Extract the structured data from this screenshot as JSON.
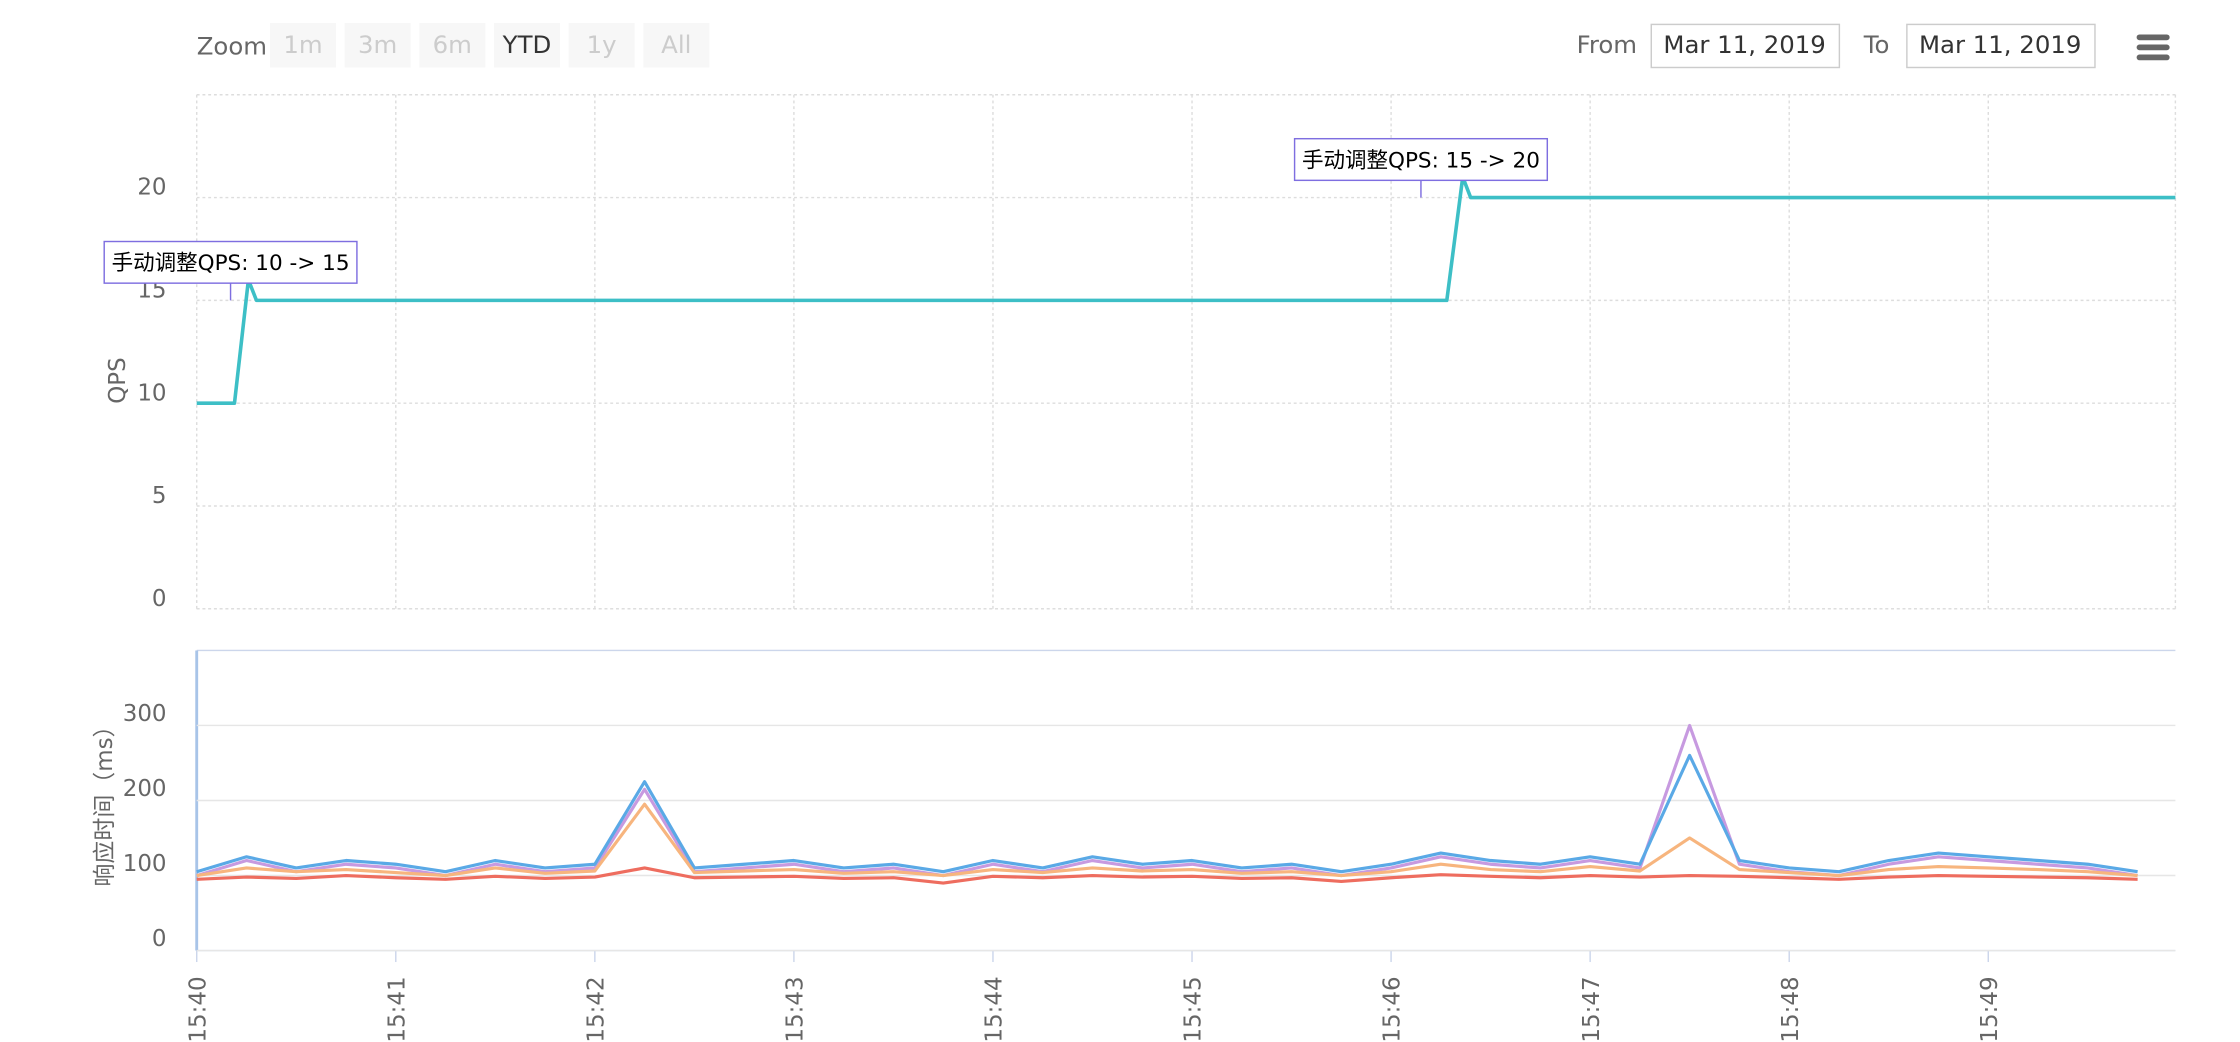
{
  "toolbar": {
    "zoom_label": "Zoom",
    "buttons": [
      "1m",
      "3m",
      "6m",
      "YTD",
      "1y",
      "All"
    ],
    "enabled": [
      false,
      false,
      false,
      true,
      false,
      false
    ],
    "from_label": "From",
    "from_value": "Mar 11, 2019",
    "to_label": "To",
    "to_value": "Mar 11, 2019"
  },
  "chart_data": [
    {
      "type": "line",
      "y_label": "QPS",
      "x": [
        940,
        940.19,
        940.26,
        940.3,
        946.28,
        946.36,
        946.4,
        949.94
      ],
      "series": [
        {
          "color": "#3dbfc6",
          "values": [
            10,
            10,
            16,
            15,
            15,
            21,
            20,
            20
          ]
        }
      ],
      "xlim": [
        940,
        949.94
      ],
      "xticks": [
        940,
        941,
        942,
        943,
        944,
        945,
        946,
        947,
        948,
        949
      ],
      "ylim": [
        0,
        25
      ],
      "yticks": [
        0,
        5,
        10,
        15,
        20
      ],
      "grid": true,
      "annotations": [
        {
          "text": "手动调整QPS: 10 -> 15",
          "x": 940.17,
          "y": 15
        },
        {
          "text": "手动调整QPS: 15 -> 20",
          "x": 946.15,
          "y": 20
        }
      ]
    },
    {
      "type": "line",
      "y_label": "响应时间（ms）",
      "x": [
        940,
        940.25,
        940.5,
        940.75,
        941,
        941.25,
        941.5,
        941.75,
        942,
        942.25,
        942.5,
        942.75,
        943,
        943.25,
        943.5,
        943.75,
        944,
        944.25,
        944.5,
        944.75,
        945,
        945.25,
        945.5,
        945.75,
        946,
        946.25,
        946.5,
        946.75,
        947,
        947.25,
        947.5,
        947.75,
        948,
        948.25,
        948.5,
        948.75,
        949,
        949.25,
        949.5,
        949.75
      ],
      "series": [
        {
          "color": "#c79ae0",
          "values": [
            100,
            120,
            105,
            115,
            110,
            100,
            115,
            105,
            110,
            215,
            105,
            110,
            115,
            105,
            110,
            100,
            115,
            105,
            120,
            110,
            115,
            105,
            110,
            100,
            110,
            125,
            115,
            110,
            120,
            110,
            300,
            115,
            105,
            100,
            115,
            125,
            120,
            115,
            110,
            100
          ]
        },
        {
          "color": "#5aa9e6",
          "values": [
            105,
            125,
            110,
            120,
            115,
            105,
            120,
            110,
            115,
            225,
            110,
            115,
            120,
            110,
            115,
            105,
            120,
            110,
            125,
            115,
            120,
            110,
            115,
            105,
            115,
            130,
            120,
            115,
            125,
            115,
            260,
            120,
            110,
            105,
            120,
            130,
            125,
            120,
            115,
            105
          ]
        },
        {
          "color": "#f7b57e",
          "values": [
            100,
            110,
            105,
            108,
            104,
            100,
            110,
            103,
            106,
            195,
            104,
            106,
            108,
            103,
            105,
            100,
            108,
            104,
            110,
            106,
            108,
            103,
            105,
            100,
            105,
            115,
            108,
            105,
            112,
            106,
            150,
            108,
            104,
            100,
            108,
            112,
            110,
            108,
            105,
            100
          ]
        },
        {
          "color": "#ee6d5f",
          "values": [
            95,
            98,
            96,
            100,
            97,
            95,
            99,
            96,
            98,
            110,
            97,
            98,
            99,
            96,
            97,
            90,
            99,
            97,
            100,
            98,
            99,
            96,
            97,
            92,
            97,
            101,
            99,
            97,
            100,
            98,
            100,
            99,
            97,
            95,
            98,
            100,
            99,
            98,
            97,
            95
          ]
        }
      ],
      "xlim": [
        940,
        949.94
      ],
      "xticks": [
        {
          "value": 940,
          "label": "15:40"
        },
        {
          "value": 941,
          "label": "15:41"
        },
        {
          "value": 942,
          "label": "15:42"
        },
        {
          "value": 943,
          "label": "15:43"
        },
        {
          "value": 944,
          "label": "15:44"
        },
        {
          "value": 945,
          "label": "15:45"
        },
        {
          "value": 946,
          "label": "15:46"
        },
        {
          "value": 947,
          "label": "15:47"
        },
        {
          "value": 948,
          "label": "15:48"
        },
        {
          "value": 949,
          "label": "15:49"
        }
      ],
      "ylim": [
        0,
        400
      ],
      "yticks": [
        0,
        100,
        200,
        300
      ],
      "grid": true
    }
  ]
}
